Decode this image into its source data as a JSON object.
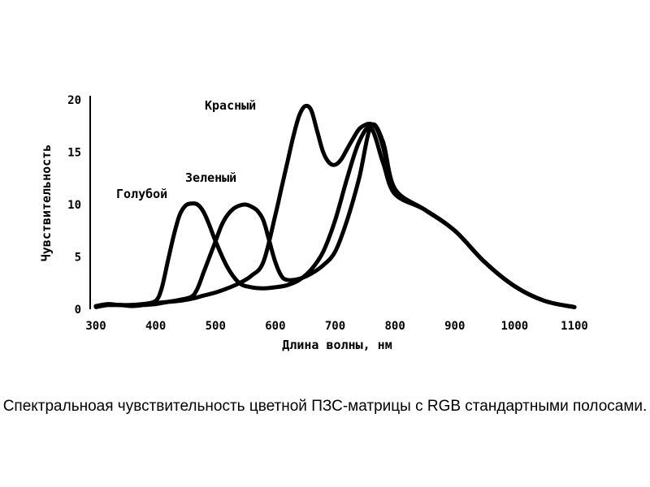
{
  "chart_data": {
    "type": "line",
    "xlabel": "Длина волны, нм",
    "ylabel": "Чувствительность",
    "xlim": [
      300,
      1100
    ],
    "ylim": [
      0,
      20
    ],
    "x_ticks": [
      300,
      400,
      500,
      600,
      700,
      800,
      900,
      1000,
      1100
    ],
    "y_ticks": [
      0,
      5,
      10,
      15,
      20
    ],
    "grid": false,
    "series": [
      {
        "name": "Голубой",
        "x": [
          300,
          320,
          340,
          360,
          380,
          400,
          410,
          420,
          430,
          440,
          450,
          460,
          470,
          480,
          490,
          500,
          520,
          540,
          560,
          580,
          600,
          620,
          640,
          660,
          680,
          700,
          720,
          740,
          760,
          780,
          800,
          850,
          900,
          950,
          1000,
          1050,
          1100
        ],
        "y": [
          0.3,
          0.5,
          0.4,
          0.4,
          0.5,
          0.8,
          2.0,
          4.5,
          7.0,
          9.0,
          9.9,
          10.1,
          10.0,
          9.3,
          8.0,
          6.5,
          4.0,
          2.5,
          2.1,
          2.0,
          2.1,
          2.3,
          2.8,
          3.8,
          5.5,
          8.5,
          12.5,
          16.0,
          17.3,
          14.0,
          11.0,
          9.5,
          7.5,
          4.5,
          2.2,
          0.8,
          0.2
        ]
      },
      {
        "name": "Зеленый",
        "x": [
          300,
          320,
          340,
          360,
          380,
          400,
          420,
          440,
          460,
          470,
          480,
          490,
          500,
          510,
          520,
          530,
          540,
          550,
          560,
          570,
          580,
          590,
          600,
          610,
          620,
          640,
          660,
          680,
          700,
          720,
          740,
          760,
          780,
          800,
          850,
          900,
          950,
          1000,
          1050,
          1100
        ],
        "y": [
          0.2,
          0.4,
          0.4,
          0.3,
          0.4,
          0.5,
          0.7,
          0.9,
          1.2,
          2.0,
          3.5,
          5.0,
          6.5,
          8.0,
          9.0,
          9.6,
          9.9,
          10.0,
          9.8,
          9.4,
          8.5,
          6.5,
          4.5,
          3.2,
          2.8,
          2.9,
          3.4,
          4.2,
          5.5,
          8.5,
          12.5,
          17.5,
          16.0,
          11.5,
          9.5,
          7.5,
          4.5,
          2.2,
          0.8,
          0.2
        ]
      },
      {
        "name": "Красный",
        "x": [
          300,
          320,
          340,
          360,
          380,
          400,
          420,
          440,
          460,
          480,
          500,
          520,
          540,
          560,
          580,
          600,
          610,
          620,
          630,
          640,
          650,
          660,
          670,
          680,
          690,
          700,
          710,
          720,
          730,
          740,
          750,
          760,
          770,
          780,
          790,
          800,
          850,
          900,
          950,
          1000,
          1050,
          1100
        ],
        "y": [
          0.3,
          0.4,
          0.4,
          0.4,
          0.5,
          0.6,
          0.7,
          0.8,
          1.0,
          1.3,
          1.6,
          2.0,
          2.5,
          3.2,
          4.5,
          9.0,
          11.5,
          14.0,
          16.5,
          18.5,
          19.4,
          19.0,
          17.0,
          15.0,
          14.0,
          13.8,
          14.3,
          15.3,
          16.3,
          17.2,
          17.6,
          17.7,
          17.2,
          15.5,
          13.0,
          11.0,
          9.5,
          7.5,
          4.5,
          2.2,
          0.8,
          0.2
        ]
      }
    ],
    "caption": "Спектральноая чувствительность цветной ПЗС-матрицы с RGB стандартными полосами."
  }
}
